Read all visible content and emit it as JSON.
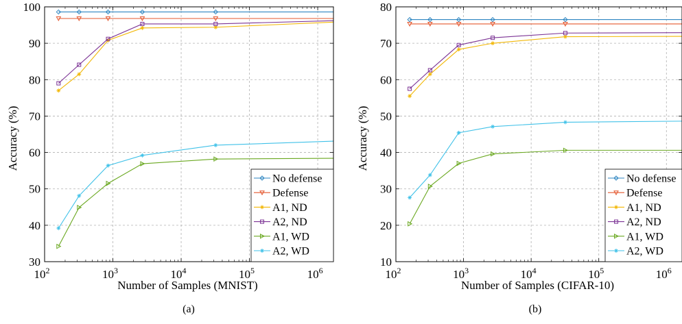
{
  "legend_labels": [
    "No defense",
    "Defense",
    "A1, ND",
    "A2, ND",
    "A1, WD",
    "A2, WD"
  ],
  "colors": {
    "No defense": "#2e86c1",
    "Defense": "#e4572e",
    "A1, ND": "#f2b705",
    "A2, ND": "#7b3294",
    "A1, WD": "#6aa820",
    "A2, WD": "#3fc1e8"
  },
  "chart_data": [
    {
      "type": "line",
      "caption": "(a)",
      "xlabel": "Number of Samples (MNIST)",
      "ylabel": "Accuracy (%)",
      "xscale": "log",
      "xlim": [
        100,
        1700000
      ],
      "ylim": [
        30,
        100
      ],
      "xticks": [
        {
          "exp": "2"
        },
        {
          "exp": "3"
        },
        {
          "exp": "4"
        },
        {
          "exp": "5"
        },
        {
          "exp": "6"
        }
      ],
      "yticks": [
        "30",
        "40",
        "50",
        "60",
        "70",
        "80",
        "90",
        "100"
      ],
      "grid": true,
      "legend": "bottom-right",
      "x": [
        160,
        320,
        850,
        2700,
        32000,
        1700000
      ],
      "series": [
        {
          "name": "No defense",
          "marker": "diamond",
          "values": [
            98.6,
            98.6,
            98.6,
            98.6,
            98.6,
            98.6
          ]
        },
        {
          "name": "Defense",
          "marker": "triangle-down",
          "values": [
            96.8,
            96.8,
            96.8,
            96.8,
            96.8,
            96.8
          ]
        },
        {
          "name": "A1, ND",
          "marker": "star",
          "values": [
            77.0,
            81.5,
            90.8,
            94.2,
            94.4,
            95.8
          ]
        },
        {
          "name": "A2, ND",
          "marker": "square",
          "values": [
            79.0,
            84.1,
            91.2,
            95.3,
            95.3,
            96.2
          ]
        },
        {
          "name": "A1, WD",
          "marker": "triangle-right",
          "values": [
            34.2,
            44.9,
            51.5,
            56.9,
            58.2,
            58.4
          ]
        },
        {
          "name": "A2, WD",
          "marker": "star",
          "values": [
            39.2,
            48.1,
            56.4,
            59.2,
            62.0,
            63.1
          ]
        }
      ]
    },
    {
      "type": "line",
      "caption": "(b)",
      "xlabel": "Number of Samples (CIFAR-10)",
      "ylabel": "Accuracy (%)",
      "xscale": "log",
      "xlim": [
        100,
        1700000
      ],
      "ylim": [
        10,
        80
      ],
      "xticks": [
        {
          "exp": "2"
        },
        {
          "exp": "3"
        },
        {
          "exp": "4"
        },
        {
          "exp": "5"
        },
        {
          "exp": "6"
        }
      ],
      "yticks": [
        "10",
        "20",
        "30",
        "40",
        "50",
        "60",
        "70",
        "80"
      ],
      "grid": true,
      "legend": "bottom-right",
      "x": [
        160,
        320,
        850,
        2700,
        32000,
        1700000
      ],
      "series": [
        {
          "name": "No defense",
          "marker": "diamond",
          "values": [
            76.5,
            76.5,
            76.5,
            76.5,
            76.5,
            76.5
          ]
        },
        {
          "name": "Defense",
          "marker": "triangle-down",
          "values": [
            75.3,
            75.3,
            75.3,
            75.3,
            75.3,
            75.3
          ]
        },
        {
          "name": "A1, ND",
          "marker": "star",
          "values": [
            55.5,
            61.5,
            68.3,
            70.0,
            71.8,
            71.9
          ]
        },
        {
          "name": "A2, ND",
          "marker": "square",
          "values": [
            57.5,
            62.6,
            69.5,
            71.5,
            72.8,
            72.9
          ]
        },
        {
          "name": "A1, WD",
          "marker": "triangle-right",
          "values": [
            20.4,
            30.7,
            37.0,
            39.6,
            40.6,
            40.6
          ]
        },
        {
          "name": "A2, WD",
          "marker": "star",
          "values": [
            27.6,
            33.8,
            45.4,
            47.1,
            48.3,
            48.6
          ]
        }
      ]
    }
  ]
}
